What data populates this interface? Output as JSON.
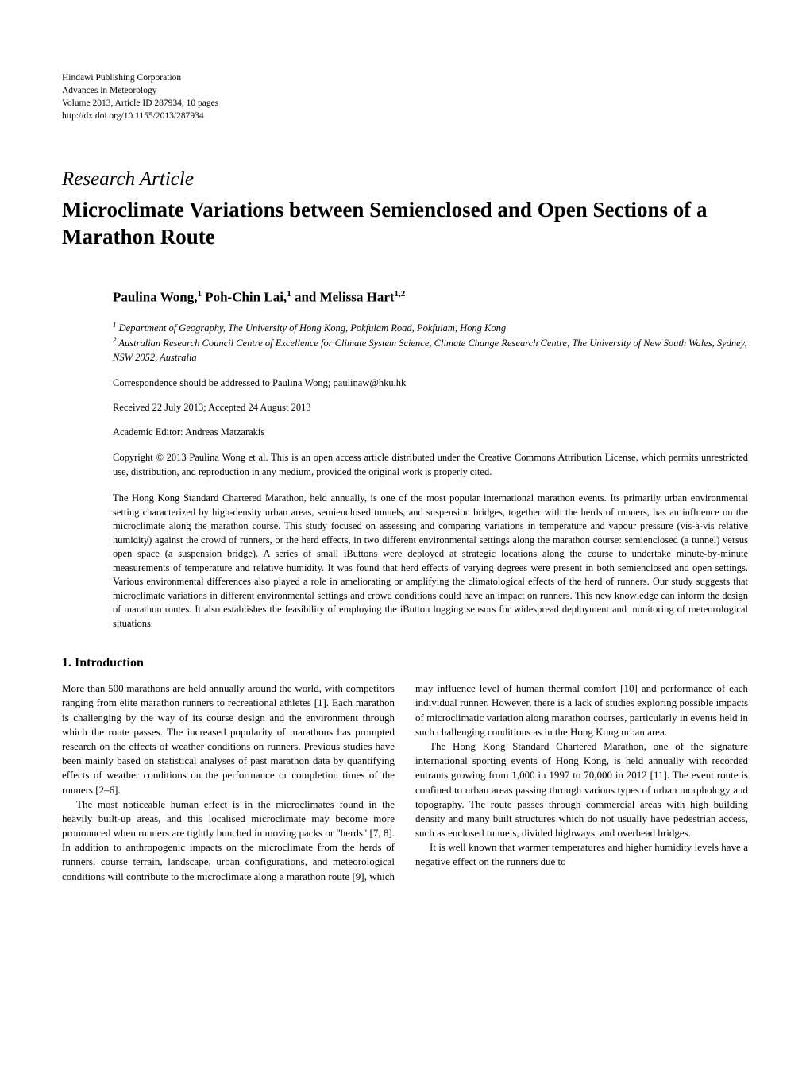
{
  "publisher": {
    "line1": "Hindawi Publishing Corporation",
    "line2": "Advances in Meteorology",
    "line3": "Volume 2013, Article ID 287934, 10 pages",
    "line4": "http://dx.doi.org/10.1155/2013/287934"
  },
  "article": {
    "type": "Research Article",
    "title": "Microclimate Variations between Semienclosed and Open Sections of a Marathon Route"
  },
  "authors": {
    "name1": "Paulina Wong,",
    "sup1": "1",
    "name2": " Poh-Chin Lai,",
    "sup2": "1",
    "name3": " and Melissa Hart",
    "sup3": "1,2"
  },
  "affiliations": {
    "sup1": "1",
    "text1": " Department of Geography, The University of Hong Kong, Pokfulam Road, Pokfulam, Hong Kong",
    "sup2": "2",
    "text2": " Australian Research Council Centre of Excellence for Climate System Science, Climate Change Research Centre, The University of New South Wales, Sydney, NSW 2052, Australia"
  },
  "correspondence": "Correspondence should be addressed to Paulina Wong; paulinaw@hku.hk",
  "dates": "Received 22 July 2013; Accepted 24 August 2013",
  "editor": "Academic Editor: Andreas Matzarakis",
  "copyright": "Copyright © 2013 Paulina Wong et al. This is an open access article distributed under the Creative Commons Attribution License, which permits unrestricted use, distribution, and reproduction in any medium, provided the original work is properly cited.",
  "abstract": "The Hong Kong Standard Chartered Marathon, held annually, is one of the most popular international marathon events. Its primarily urban environmental setting characterized by high-density urban areas, semienclosed tunnels, and suspension bridges, together with the herds of runners, has an influence on the microclimate along the marathon course. This study focused on assessing and comparing variations in temperature and vapour pressure (vis-à-vis relative humidity) against the crowd of runners, or the herd effects, in two different environmental settings along the marathon course: semienclosed (a tunnel) versus open space (a suspension bridge). A series of small iButtons were deployed at strategic locations along the course to undertake minute-by-minute measurements of temperature and relative humidity. It was found that herd effects of varying degrees were present in both semienclosed and open settings. Various environmental differences also played a role in ameliorating or amplifying the climatological effects of the herd of runners. Our study suggests that microclimate variations in different environmental settings and crowd conditions could have an impact on runners. This new knowledge can inform the design of marathon routes. It also establishes the feasibility of employing the iButton logging sensors for widespread deployment and monitoring of meteorological situations.",
  "section1": {
    "heading": "1. Introduction",
    "para1": "More than 500 marathons are held annually around the world, with competitors ranging from elite marathon runners to recreational athletes [1]. Each marathon is challenging by the way of its course design and the environment through which the route passes. The increased popularity of marathons has prompted research on the effects of weather conditions on runners. Previous studies have been mainly based on statistical analyses of past marathon data by quantifying effects of weather conditions on the performance or completion times of the runners [2–6].",
    "para2": "The most noticeable human effect is in the microclimates found in the heavily built-up areas, and this localised microclimate may become more pronounced when runners are tightly bunched in moving packs or \"herds\" [7, 8]. In addition to anthropogenic impacts on the microclimate from the herds of runners, course terrain, landscape, urban configurations, and meteorological conditions will contribute to the microclimate along a marathon route [9], which may influence level of human thermal comfort [10] and performance of each individual runner. However, there is a lack of studies exploring possible impacts of microclimatic variation along marathon courses, particularly in events held in such challenging conditions as in the Hong Kong urban area.",
    "para3": "The Hong Kong Standard Chartered Marathon, one of the signature international sporting events of Hong Kong, is held annually with recorded entrants growing from 1,000 in 1997 to 70,000 in 2012 [11]. The event route is confined to urban areas passing through various types of urban morphology and topography. The route passes through commercial areas with high building density and many built structures which do not usually have pedestrian access, such as enclosed tunnels, divided highways, and overhead bridges.",
    "para4": "It is well known that warmer temperatures and higher humidity levels have a negative effect on the runners due to"
  }
}
